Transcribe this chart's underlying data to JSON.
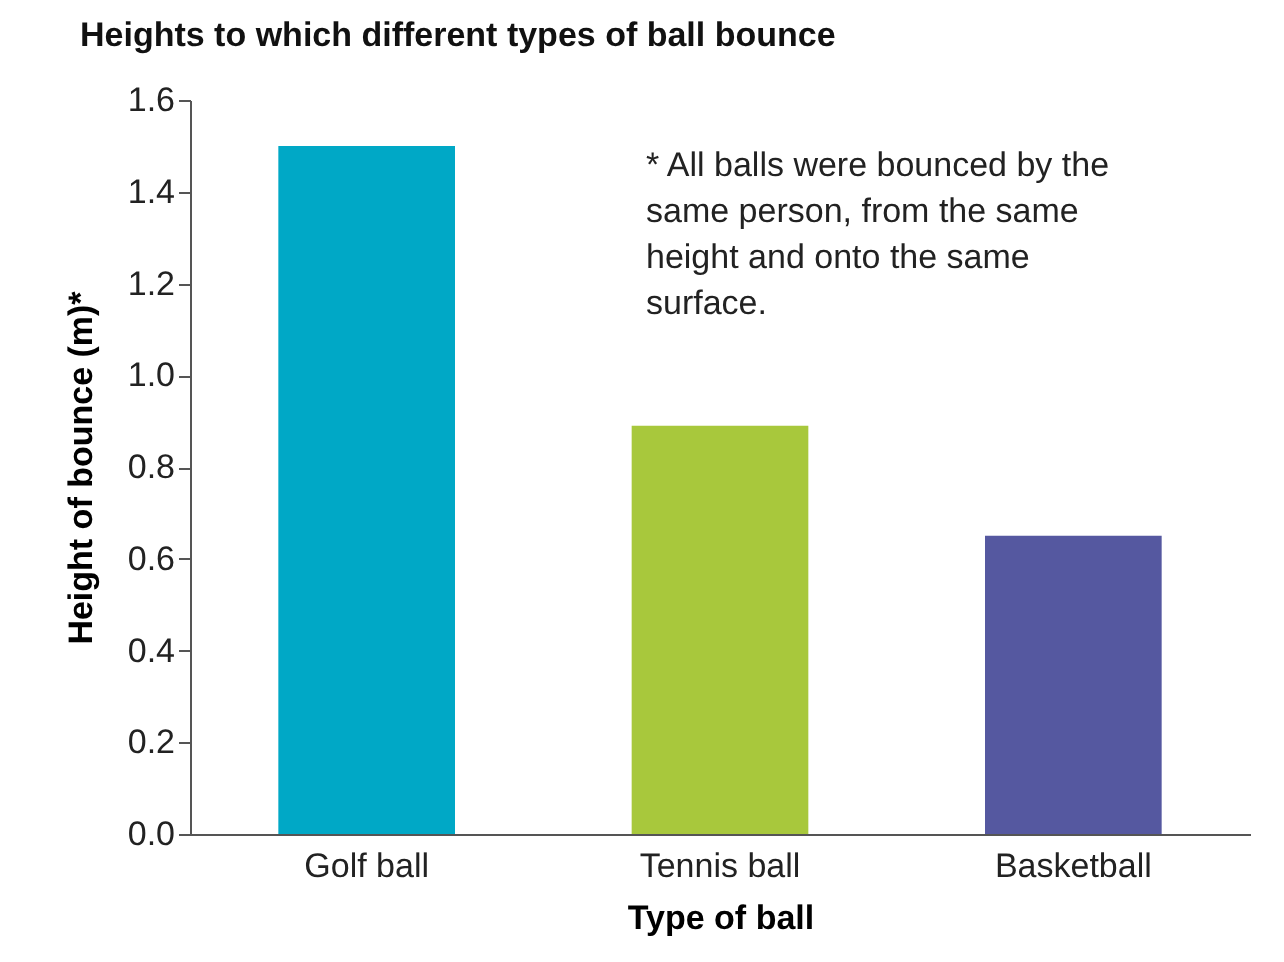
{
  "chart_data": {
    "type": "bar",
    "title": "Heights to which different types of ball bounce",
    "xlabel": "Type of ball",
    "ylabel": "Height of bounce (m)*",
    "categories": [
      "Golf ball",
      "Tennis ball",
      "Basketball"
    ],
    "values": [
      1.5,
      0.89,
      0.65
    ],
    "colors": [
      "#00a8c6",
      "#a8c83c",
      "#5558a0"
    ],
    "ylim": [
      0,
      1.6
    ],
    "yticks": [
      {
        "value": 0,
        "label": "0.0"
      },
      0.2,
      0.4,
      0.6,
      0.8,
      {
        "value": 1,
        "label": "1.0"
      },
      1.2,
      1.4,
      1.6
    ],
    "grid": false,
    "legend": false,
    "annotations": [
      "* All balls were bounced by the same person, from the same height and onto the same surface."
    ]
  }
}
